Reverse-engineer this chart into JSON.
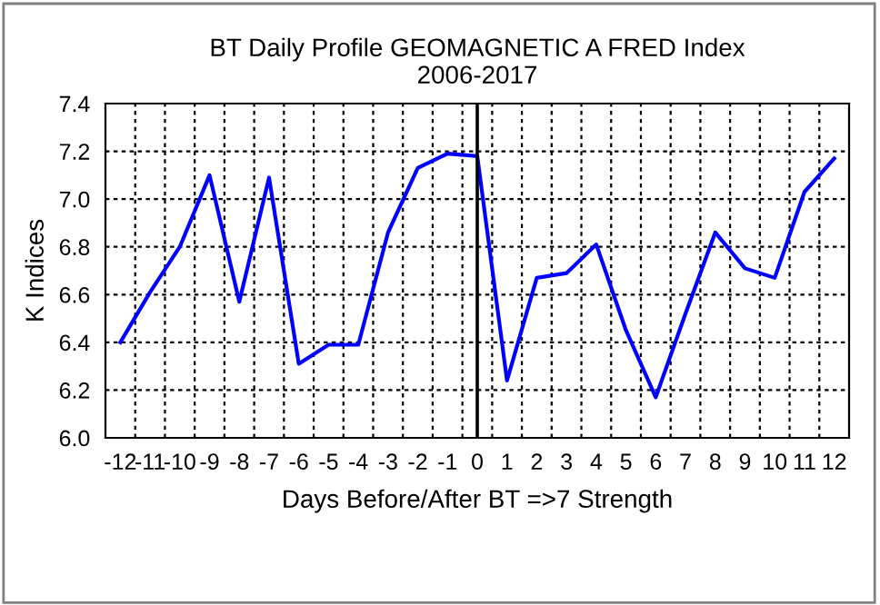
{
  "chart_data": {
    "type": "line",
    "title": "BT Daily Profile GEOMAGNETIC A FRED Index\n2006-2017",
    "xlabel": "Days Before/After BT =>7 Strength",
    "ylabel": "K Indices",
    "x": [
      -12,
      -11,
      -10,
      -9,
      -8,
      -7,
      -6,
      -5,
      -4,
      -3,
      -2,
      -1,
      0,
      1,
      2,
      3,
      4,
      5,
      6,
      7,
      8,
      9,
      10,
      11,
      12
    ],
    "series": [
      {
        "color": "#0000ff",
        "values": [
          6.4,
          6.61,
          6.8,
          7.1,
          6.57,
          7.09,
          6.31,
          6.39,
          6.39,
          6.86,
          7.13,
          7.19,
          7.18,
          6.24,
          6.67,
          6.69,
          6.81,
          6.45,
          6.17,
          6.52,
          6.86,
          6.71,
          6.67,
          7.03,
          7.17
        ]
      }
    ],
    "xlim": [
      -12.5,
      12.5
    ],
    "xticks": [
      -12,
      -11,
      -10,
      -9,
      -8,
      -7,
      -6,
      -5,
      -4,
      -3,
      -2,
      -1,
      0,
      1,
      2,
      3,
      4,
      5,
      6,
      7,
      8,
      9,
      10,
      11,
      12
    ],
    "ylim": [
      6.0,
      7.4
    ],
    "yticks": [
      {
        "value": 6.0,
        "label": "6.0"
      },
      {
        "value": 6.2,
        "label": "6.2"
      },
      {
        "value": 6.4,
        "label": "6.4"
      },
      {
        "value": 6.6,
        "label": "6.6"
      },
      {
        "value": 6.8,
        "label": "6.8"
      },
      {
        "value": 7.0,
        "label": "7.0"
      },
      {
        "value": 7.2,
        "label": "7.2"
      },
      {
        "value": 7.4,
        "label": "7.4"
      }
    ],
    "grid": true,
    "legend": false,
    "ref_lines": [
      {
        "axis": "x",
        "value": 0,
        "color": "#000000",
        "line_style": "solid"
      }
    ]
  }
}
